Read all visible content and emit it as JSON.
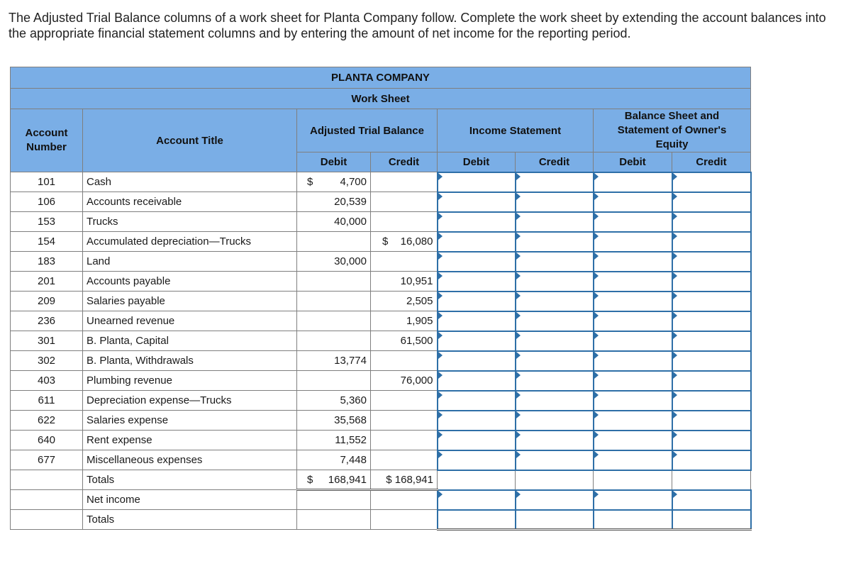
{
  "instructions": "The Adjusted Trial Balance columns of a work sheet for Planta Company follow. Complete the work sheet by extending the account balances into the appropriate financial statement columns and by entering the amount of net income for the reporting period.",
  "worksheet": {
    "company": "PLANTA COMPANY",
    "title": "Work Sheet",
    "headers": {
      "account_number": "Account Number",
      "account_title": "Account Title",
      "adjusted_trial_balance": "Adjusted Trial Balance",
      "income_statement": "Income Statement",
      "balance_sheet": "Balance Sheet and Statement of Owner's Equity",
      "debit": "Debit",
      "credit": "Credit"
    },
    "rows": [
      {
        "number": "101",
        "title": "Cash",
        "debit": "4,700",
        "debit_dollar": "$",
        "credit": "",
        "credit_dollar": ""
      },
      {
        "number": "106",
        "title": "Accounts receivable",
        "debit": "20,539",
        "debit_dollar": "",
        "credit": "",
        "credit_dollar": ""
      },
      {
        "number": "153",
        "title": "Trucks",
        "debit": "40,000",
        "debit_dollar": "",
        "credit": "",
        "credit_dollar": ""
      },
      {
        "number": "154",
        "title": "Accumulated depreciation—Trucks",
        "debit": "",
        "debit_dollar": "",
        "credit": "16,080",
        "credit_dollar": "$"
      },
      {
        "number": "183",
        "title": "Land",
        "debit": "30,000",
        "debit_dollar": "",
        "credit": "",
        "credit_dollar": ""
      },
      {
        "number": "201",
        "title": "Accounts payable",
        "debit": "",
        "debit_dollar": "",
        "credit": "10,951",
        "credit_dollar": ""
      },
      {
        "number": "209",
        "title": "Salaries payable",
        "debit": "",
        "debit_dollar": "",
        "credit": "2,505",
        "credit_dollar": ""
      },
      {
        "number": "236",
        "title": "Unearned revenue",
        "debit": "",
        "debit_dollar": "",
        "credit": "1,905",
        "credit_dollar": ""
      },
      {
        "number": "301",
        "title": "B. Planta, Capital",
        "debit": "",
        "debit_dollar": "",
        "credit": "61,500",
        "credit_dollar": ""
      },
      {
        "number": "302",
        "title": "B. Planta, Withdrawals",
        "debit": "13,774",
        "debit_dollar": "",
        "credit": "",
        "credit_dollar": ""
      },
      {
        "number": "403",
        "title": "Plumbing revenue",
        "debit": "",
        "debit_dollar": "",
        "credit": "76,000",
        "credit_dollar": ""
      },
      {
        "number": "611",
        "title": "Depreciation expense—Trucks",
        "debit": "5,360",
        "debit_dollar": "",
        "credit": "",
        "credit_dollar": ""
      },
      {
        "number": "622",
        "title": "Salaries expense",
        "debit": "35,568",
        "debit_dollar": "",
        "credit": "",
        "credit_dollar": ""
      },
      {
        "number": "640",
        "title": "Rent expense",
        "debit": "11,552",
        "debit_dollar": "",
        "credit": "",
        "credit_dollar": ""
      },
      {
        "number": "677",
        "title": "Miscellaneous expenses",
        "debit": "7,448",
        "debit_dollar": "",
        "credit": "",
        "credit_dollar": ""
      }
    ],
    "totals": {
      "title": "Totals",
      "debit": "168,941",
      "debit_dollar": "$",
      "credit": "$ 168,941"
    },
    "net_income": {
      "title": "Net income"
    },
    "final_totals": {
      "title": "Totals"
    }
  }
}
